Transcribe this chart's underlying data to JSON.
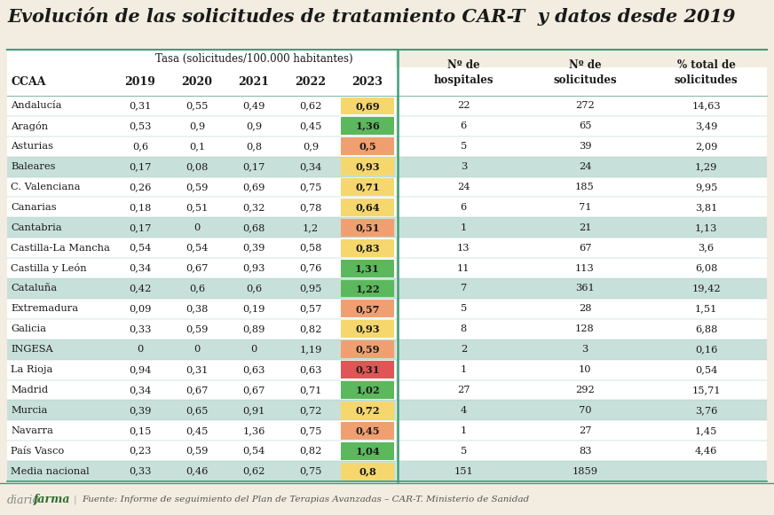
{
  "title": "Evolución de las solicitudes de tratamiento CAR-T  y datos desde 2019",
  "subtitle": "Tasa (solicitudes/100.000 habitantes)",
  "col_header_left": "CCAA",
  "col_years": [
    "2019",
    "2020",
    "2021",
    "2022",
    "2023"
  ],
  "col_right_headers": [
    "Nº de\nhospitales",
    "Nº de\nsolicitudes",
    "% total de\nsolicitudes"
  ],
  "rows": [
    {
      "ccaa": "Andalucía",
      "vals": [
        "0,31",
        "0,55",
        "0,49",
        "0,62",
        "0,69"
      ],
      "color2023": "#f5d76e",
      "hospitals": "22",
      "solicitudes": "272",
      "pct": "14,63",
      "stripe": false
    },
    {
      "ccaa": "Aragón",
      "vals": [
        "0,53",
        "0,9",
        "0,9",
        "0,45",
        "1,36"
      ],
      "color2023": "#5cb85c",
      "hospitals": "6",
      "solicitudes": "65",
      "pct": "3,49",
      "stripe": false
    },
    {
      "ccaa": "Asturias",
      "vals": [
        "0,6",
        "0,1",
        "0,8",
        "0,9",
        "0,5"
      ],
      "color2023": "#f0a070",
      "hospitals": "5",
      "solicitudes": "39",
      "pct": "2,09",
      "stripe": false
    },
    {
      "ccaa": "Baleares",
      "vals": [
        "0,17",
        "0,08",
        "0,17",
        "0,34",
        "0,93"
      ],
      "color2023": "#f5d76e",
      "hospitals": "3",
      "solicitudes": "24",
      "pct": "1,29",
      "stripe": true
    },
    {
      "ccaa": "C. Valenciana",
      "vals": [
        "0,26",
        "0,59",
        "0,69",
        "0,75",
        "0,71"
      ],
      "color2023": "#f5d76e",
      "hospitals": "24",
      "solicitudes": "185",
      "pct": "9,95",
      "stripe": false
    },
    {
      "ccaa": "Canarias",
      "vals": [
        "0,18",
        "0,51",
        "0,32",
        "0,78",
        "0,64"
      ],
      "color2023": "#f5d76e",
      "hospitals": "6",
      "solicitudes": "71",
      "pct": "3,81",
      "stripe": false
    },
    {
      "ccaa": "Cantabria",
      "vals": [
        "0,17",
        "0",
        "0,68",
        "1,2",
        "0,51"
      ],
      "color2023": "#f0a070",
      "hospitals": "1",
      "solicitudes": "21",
      "pct": "1,13",
      "stripe": true
    },
    {
      "ccaa": "Castilla-La Mancha",
      "vals": [
        "0,54",
        "0,54",
        "0,39",
        "0,58",
        "0,83"
      ],
      "color2023": "#f5d76e",
      "hospitals": "13",
      "solicitudes": "67",
      "pct": "3,6",
      "stripe": false
    },
    {
      "ccaa": "Castilla y León",
      "vals": [
        "0,34",
        "0,67",
        "0,93",
        "0,76",
        "1,31"
      ],
      "color2023": "#5cb85c",
      "hospitals": "11",
      "solicitudes": "113",
      "pct": "6,08",
      "stripe": false
    },
    {
      "ccaa": "Cataluña",
      "vals": [
        "0,42",
        "0,6",
        "0,6",
        "0,95",
        "1,22"
      ],
      "color2023": "#5cb85c",
      "hospitals": "7",
      "solicitudes": "361",
      "pct": "19,42",
      "stripe": true
    },
    {
      "ccaa": "Extremadura",
      "vals": [
        "0,09",
        "0,38",
        "0,19",
        "0,57",
        "0,57"
      ],
      "color2023": "#f0a070",
      "hospitals": "5",
      "solicitudes": "28",
      "pct": "1,51",
      "stripe": false
    },
    {
      "ccaa": "Galicia",
      "vals": [
        "0,33",
        "0,59",
        "0,89",
        "0,82",
        "0,93"
      ],
      "color2023": "#f5d76e",
      "hospitals": "8",
      "solicitudes": "128",
      "pct": "6,88",
      "stripe": false
    },
    {
      "ccaa": "INGESA",
      "vals": [
        "0",
        "0",
        "0",
        "1,19",
        "0,59"
      ],
      "color2023": "#f0a070",
      "hospitals": "2",
      "solicitudes": "3",
      "pct": "0,16",
      "stripe": true
    },
    {
      "ccaa": "La Rioja",
      "vals": [
        "0,94",
        "0,31",
        "0,63",
        "0,63",
        "0,31"
      ],
      "color2023": "#e05555",
      "hospitals": "1",
      "solicitudes": "10",
      "pct": "0,54",
      "stripe": false
    },
    {
      "ccaa": "Madrid",
      "vals": [
        "0,34",
        "0,67",
        "0,67",
        "0,71",
        "1,02"
      ],
      "color2023": "#5cb85c",
      "hospitals": "27",
      "solicitudes": "292",
      "pct": "15,71",
      "stripe": false
    },
    {
      "ccaa": "Murcia",
      "vals": [
        "0,39",
        "0,65",
        "0,91",
        "0,72",
        "0,72"
      ],
      "color2023": "#f5d76e",
      "hospitals": "4",
      "solicitudes": "70",
      "pct": "3,76",
      "stripe": true
    },
    {
      "ccaa": "Navarra",
      "vals": [
        "0,15",
        "0,45",
        "1,36",
        "0,75",
        "0,45"
      ],
      "color2023": "#f0a070",
      "hospitals": "1",
      "solicitudes": "27",
      "pct": "1,45",
      "stripe": false
    },
    {
      "ccaa": "País Vasco",
      "vals": [
        "0,23",
        "0,59",
        "0,54",
        "0,82",
        "1,04"
      ],
      "color2023": "#5cb85c",
      "hospitals": "5",
      "solicitudes": "83",
      "pct": "4,46",
      "stripe": false
    },
    {
      "ccaa": "Media nacional",
      "vals": [
        "0,33",
        "0,46",
        "0,62",
        "0,75",
        "0,8"
      ],
      "color2023": "#f5d76e",
      "hospitals": "151",
      "solicitudes": "1859",
      "pct": "",
      "stripe": true
    }
  ],
  "bg_color": "#f2ede0",
  "stripe_color": "#c8e0da",
  "white_color": "#ffffff",
  "divider_color": "#3d9e7a",
  "title_color": "#1a1a1a",
  "footer_text": "Fuente: Informe de seguimiento del Plan de Terapias Avanzadas – CAR-T. Ministerio de Sanidad",
  "brand_diario": "diario",
  "brand_farma": "farma"
}
